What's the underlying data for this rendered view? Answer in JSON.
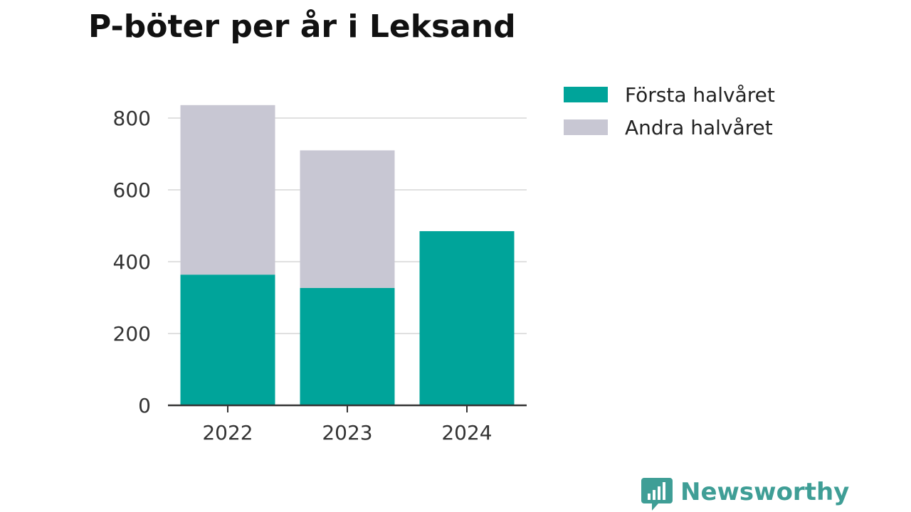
{
  "colors": {
    "series1": "#00a49a",
    "series2": "#c8c7d3",
    "grid": "#e0e0e0",
    "axis": "#333333",
    "brand": "#3f9e96"
  },
  "brand": {
    "name": "Newsworthy",
    "icon": "newsworthy-logo-icon"
  },
  "chart_data": {
    "type": "bar",
    "stacked": true,
    "title": "P-böter per år i Leksand",
    "xlabel": "",
    "ylabel": "",
    "categories": [
      "2022",
      "2023",
      "2024"
    ],
    "series": [
      {
        "name": "Första halvåret",
        "values": [
          364,
          327,
          485
        ]
      },
      {
        "name": "Andra halvåret",
        "values": [
          472,
          383,
          0
        ]
      }
    ],
    "ylim": [
      0,
      840
    ],
    "yticks": [
      0,
      200,
      400,
      600,
      800
    ],
    "grid": true,
    "legend": "top-right"
  }
}
